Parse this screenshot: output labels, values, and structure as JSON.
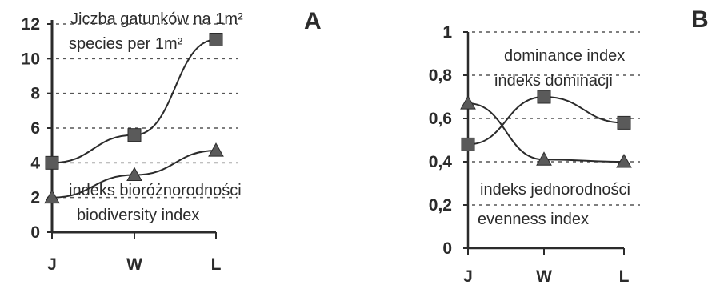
{
  "chart_data": [
    {
      "type": "line",
      "panel_label": "A",
      "categories": [
        "J",
        "W",
        "L"
      ],
      "y_ticks": [
        "0",
        "2",
        "4",
        "6",
        "8",
        "10",
        "12"
      ],
      "ylim": [
        0,
        12
      ],
      "grid": "horizontal dashed",
      "series": [
        {
          "name": "Jiczba gatunków na 1m²",
          "name_en": "species per 1m²",
          "marker": "square",
          "values": [
            4.0,
            5.6,
            11.1
          ]
        },
        {
          "name": "indeks bioróżnorodności",
          "name_en": "biodiversity index",
          "marker": "triangle",
          "values": [
            2.0,
            3.3,
            4.7
          ]
        }
      ]
    },
    {
      "type": "line",
      "panel_label": "B",
      "categories": [
        "J",
        "W",
        "L"
      ],
      "y_ticks": [
        "0",
        "0,2",
        "0,4",
        "0,6",
        "0,8",
        "1"
      ],
      "ylim": [
        0,
        1
      ],
      "grid": "horizontal dashed",
      "series": [
        {
          "name": "dominance index",
          "name_pl": "indeks dominacji",
          "marker": "square",
          "values": [
            0.48,
            0.7,
            0.58
          ]
        },
        {
          "name": "indeks jednorodności",
          "name_en": "evenness index",
          "marker": "triangle",
          "values": [
            0.67,
            0.41,
            0.4
          ]
        }
      ]
    }
  ]
}
